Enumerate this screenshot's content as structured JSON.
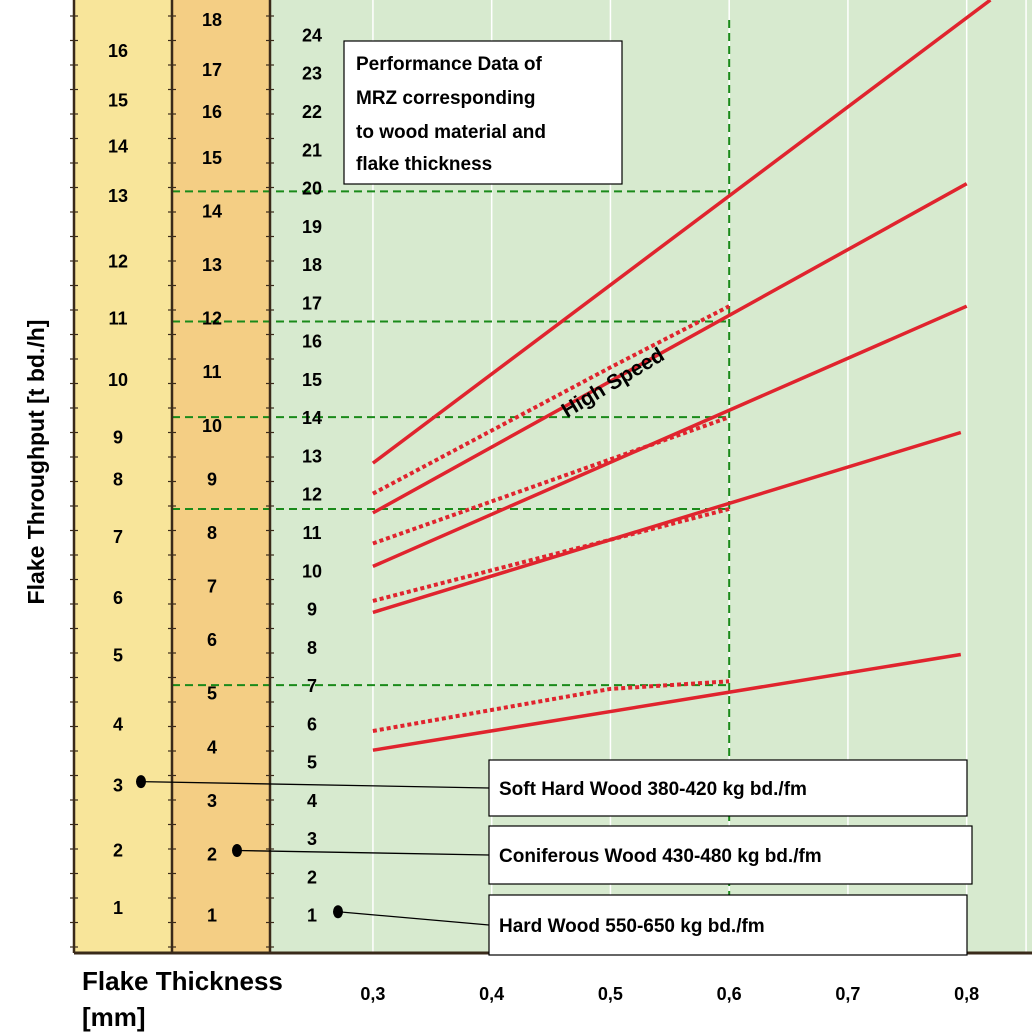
{
  "chart_data": {
    "type": "line",
    "title": "Performance Data of MRZ corresponding to wood material and flake thickness",
    "title_lines": [
      "Performance Data of",
      "MRZ corresponding",
      "to wood material and",
      "flake thickness"
    ],
    "ylabel": "Flake Throughput  [t bd./h]",
    "xlabel_lines": [
      "Flake Thickness",
      "[mm]"
    ],
    "xlim": [
      0.215,
      0.855
    ],
    "x_ticks": [
      {
        "value": 0.3,
        "label": "0,3"
      },
      {
        "value": 0.4,
        "label": "0,4"
      },
      {
        "value": 0.5,
        "label": "0,5"
      },
      {
        "value": 0.6,
        "label": "0,6"
      },
      {
        "value": 0.7,
        "label": "0,7"
      },
      {
        "value": 0.8,
        "label": "0,8"
      }
    ],
    "scale_ref": "Hard Wood 550-650 kg bd./fm",
    "ylim": [
      0,
      24.9
    ],
    "grid": "vertical",
    "scales": [
      {
        "name": "Soft Hard Wood 380-420 kg bd./fm",
        "background": "#F8E59A",
        "ticks": [
          {
            "label": "1",
            "y": 1.2
          },
          {
            "label": "2",
            "y": 2.7
          },
          {
            "label": "3",
            "y": 4.4
          },
          {
            "label": "4",
            "y": 6.0
          },
          {
            "label": "5",
            "y": 7.8
          },
          {
            "label": "6",
            "y": 9.3
          },
          {
            "label": "7",
            "y": 10.9
          },
          {
            "label": "8",
            "y": 12.4
          },
          {
            "label": "9",
            "y": 13.5
          },
          {
            "label": "10",
            "y": 15.0
          },
          {
            "label": "11",
            "y": 16.6
          },
          {
            "label": "12",
            "y": 18.1
          },
          {
            "label": "13",
            "y": 19.8
          },
          {
            "label": "14",
            "y": 21.1
          },
          {
            "label": "15",
            "y": 22.3
          },
          {
            "label": "16",
            "y": 23.6
          }
        ]
      },
      {
        "name": "Coniferous Wood 430-480 kg bd./fm",
        "background": "#F4CE84",
        "ticks": [
          {
            "label": "1",
            "y": 1.0
          },
          {
            "label": "2",
            "y": 2.6
          },
          {
            "label": "3",
            "y": 4.0
          },
          {
            "label": "4",
            "y": 5.4
          },
          {
            "label": "5",
            "y": 6.8
          },
          {
            "label": "6",
            "y": 8.2
          },
          {
            "label": "7",
            "y": 9.6
          },
          {
            "label": "8",
            "y": 11.0
          },
          {
            "label": "9",
            "y": 12.4
          },
          {
            "label": "10",
            "y": 13.8
          },
          {
            "label": "11",
            "y": 15.2
          },
          {
            "label": "12",
            "y": 16.6
          },
          {
            "label": "13",
            "y": 18.0
          },
          {
            "label": "14",
            "y": 19.4
          },
          {
            "label": "15",
            "y": 20.8
          },
          {
            "label": "16",
            "y": 22.0
          },
          {
            "label": "17",
            "y": 23.1
          },
          {
            "label": "18",
            "y": 24.4
          }
        ]
      },
      {
        "name": "Hard Wood 550-650 kg bd./fm",
        "background": "#D7EACF",
        "ticks": [
          {
            "label": "1",
            "y": 1
          },
          {
            "label": "2",
            "y": 2
          },
          {
            "label": "3",
            "y": 3
          },
          {
            "label": "4",
            "y": 4
          },
          {
            "label": "5",
            "y": 5
          },
          {
            "label": "6",
            "y": 6
          },
          {
            "label": "7",
            "y": 7
          },
          {
            "label": "8",
            "y": 8
          },
          {
            "label": "9",
            "y": 9
          },
          {
            "label": "10",
            "y": 10
          },
          {
            "label": "11",
            "y": 11
          },
          {
            "label": "12",
            "y": 12
          },
          {
            "label": "13",
            "y": 13
          },
          {
            "label": "14",
            "y": 14
          },
          {
            "label": "15",
            "y": 15
          },
          {
            "label": "16",
            "y": 16
          },
          {
            "label": "17",
            "y": 17
          },
          {
            "label": "18",
            "y": 18
          },
          {
            "label": "19",
            "y": 19
          },
          {
            "label": "20",
            "y": 20
          },
          {
            "label": "21",
            "y": 21
          },
          {
            "label": "22",
            "y": 22
          },
          {
            "label": "23",
            "y": 23
          },
          {
            "label": "24",
            "y": 24
          }
        ]
      }
    ],
    "series": [
      {
        "style": "solid",
        "x": [
          0.3,
          0.82
        ],
        "y": [
          12.8,
          24.9
        ]
      },
      {
        "style": "solid",
        "x": [
          0.3,
          0.8
        ],
        "y": [
          11.5,
          20.1
        ]
      },
      {
        "style": "solid",
        "x": [
          0.3,
          0.8
        ],
        "y": [
          10.1,
          16.9
        ]
      },
      {
        "style": "solid",
        "x": [
          0.3,
          0.795
        ],
        "y": [
          8.9,
          13.6
        ]
      },
      {
        "style": "solid",
        "x": [
          0.3,
          0.795
        ],
        "y": [
          5.3,
          7.8
        ]
      },
      {
        "style": "dotted",
        "x": [
          0.3,
          0.5,
          0.6
        ],
        "y": [
          12.0,
          15.3,
          16.9
        ]
      },
      {
        "style": "dotted",
        "x": [
          0.3,
          0.5,
          0.6
        ],
        "y": [
          10.7,
          12.9,
          14.0
        ]
      },
      {
        "style": "dotted",
        "x": [
          0.3,
          0.5,
          0.6
        ],
        "y": [
          9.2,
          10.8,
          11.6
        ]
      },
      {
        "style": "dotted",
        "x": [
          0.3,
          0.5,
          0.6
        ],
        "y": [
          5.8,
          6.9,
          7.1
        ]
      }
    ],
    "annotations": [
      {
        "text": "High Speed",
        "x": 0.505,
        "y": 14.75,
        "angle": -31
      }
    ],
    "reference_lines": {
      "vertical_x": 0.6,
      "horizontal_y": [
        7.0,
        11.6,
        14.0,
        16.5,
        19.9
      ]
    },
    "legend": [
      {
        "label": "Soft Hard Wood 380-420 kg bd./fm",
        "scale_index": 0,
        "value_label": "3",
        "y": 4.4
      },
      {
        "label": "Coniferous Wood 430-480 kg bd./fm",
        "scale_index": 1,
        "value_label": "2",
        "y": 2.6
      },
      {
        "label": "Hard Wood 550-650 kg bd./fm",
        "scale_index": 2,
        "value_label": "1",
        "y": 1
      }
    ],
    "colors": {
      "line": "#E0242E",
      "reference": "#1A8A1A",
      "grid": "#FFFFFF",
      "axis": "#3A2A1A"
    }
  }
}
